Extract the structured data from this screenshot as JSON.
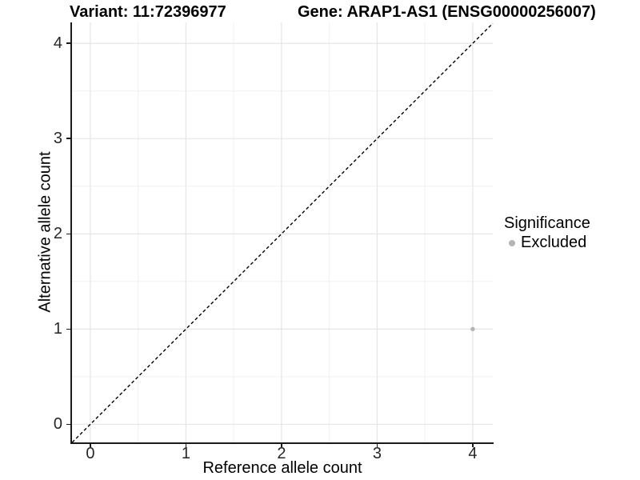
{
  "chart_data": {
    "type": "scatter",
    "title_left": "Variant: 11:72396977",
    "title_right": "Gene: ARAP1-AS1 (ENSG00000256007)",
    "xlabel": "Reference allele count",
    "ylabel": "Alternative allele count",
    "xlim": [
      -0.2,
      4.21
    ],
    "ylim": [
      -0.19,
      4.22
    ],
    "x_ticks": [
      0,
      1,
      2,
      3,
      4
    ],
    "y_ticks": [
      0,
      1,
      2,
      3,
      4
    ],
    "grid": "major+minor",
    "grid_major_color": "#e3e3e3",
    "grid_minor_color": "#f1f1f1",
    "axis_color": "#1a1a1a",
    "reference_line": {
      "type": "identity",
      "style": "dashed",
      "color": "#000000"
    },
    "series": [
      {
        "name": "Excluded",
        "color": "#b4b4b4",
        "points": [
          {
            "x": 4,
            "y": 1
          }
        ]
      }
    ],
    "legend": {
      "title": "Significance",
      "position": "right",
      "entries": [
        {
          "label": "Excluded",
          "color": "#b4b4b4"
        }
      ]
    }
  }
}
